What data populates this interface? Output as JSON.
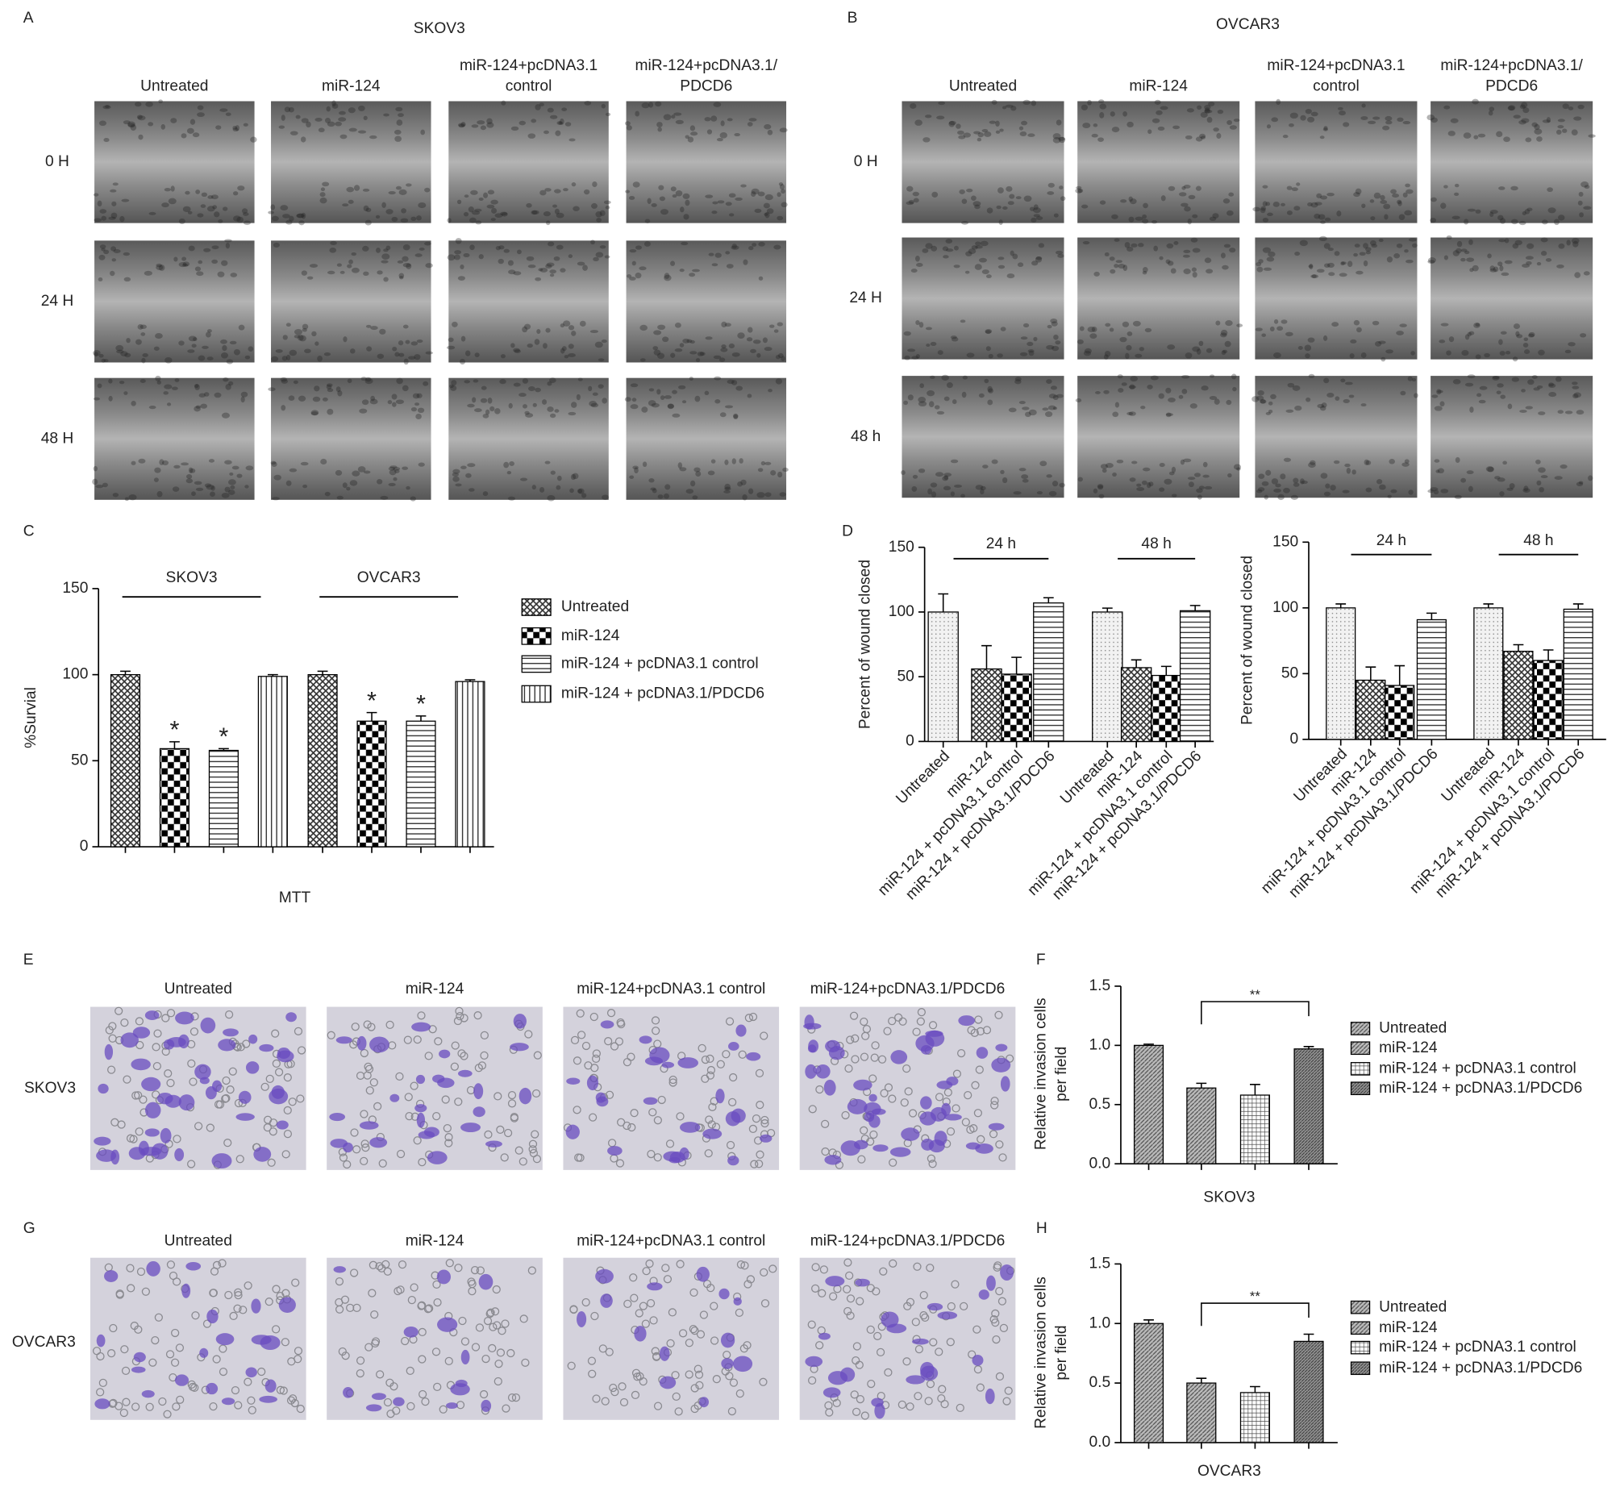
{
  "figure": {
    "panel_labels": [
      "A",
      "B",
      "C",
      "D",
      "E",
      "F",
      "G",
      "H"
    ],
    "wound_healing": [
      {
        "title": "SKOV3",
        "columns": [
          [
            "Untreated"
          ],
          [
            "miR-124"
          ],
          [
            "miR-124+pcDNA3.1",
            "control"
          ],
          [
            "miR-124+pcDNA3.1/",
            "PDCD6"
          ]
        ],
        "rows": [
          "0 H",
          "24 H",
          "48 H"
        ]
      },
      {
        "title": "OVCAR3",
        "columns": [
          [
            "Untreated"
          ],
          [
            "miR-124"
          ],
          [
            "miR-124+pcDNA3.1",
            "control"
          ],
          [
            "miR-124+pcDNA3.1/",
            "PDCD6"
          ]
        ],
        "rows": [
          "0 H",
          "24 H",
          "48 h"
        ]
      }
    ],
    "invasion": [
      {
        "row": "SKOV3",
        "columns": [
          "Untreated",
          "miR-124",
          "miR-124+pcDNA3.1 control",
          "miR-124+pcDNA3.1/PDCD6"
        ]
      },
      {
        "row": "OVCAR3",
        "columns": [
          "Untreated",
          "miR-124",
          "miR-124+pcDNA3.1 control",
          "miR-124+pcDNA3.1/PDCD6"
        ]
      }
    ]
  },
  "chart_data": [
    {
      "type": "bar",
      "categories": [
        "SKOV3",
        "OVCAR3"
      ],
      "series": [
        {
          "name": "Untreated",
          "pattern": "crosshatch",
          "values": [
            100,
            100
          ],
          "errors": [
            2,
            2
          ]
        },
        {
          "name": "miR-124",
          "pattern": "checker",
          "values": [
            57,
            73
          ],
          "errors": [
            4,
            5
          ]
        },
        {
          "name": "miR-124 + pcDNA3.1 control",
          "pattern": "hlines",
          "values": [
            56,
            73
          ],
          "errors": [
            1,
            3
          ]
        },
        {
          "name": "miR-124 + pcDNA3.1/PDCD6",
          "pattern": "vlines",
          "values": [
            99,
            96
          ],
          "errors": [
            1,
            1
          ]
        }
      ],
      "ylim": [
        0,
        150
      ],
      "yticks": [
        0,
        50,
        100,
        150
      ],
      "y_label": "%Survial",
      "x_label": "MTT",
      "annotations": [
        {
          "text": "*",
          "series": 1,
          "category": 0
        },
        {
          "text": "*",
          "series": 2,
          "category": 0
        },
        {
          "text": "*",
          "series": 1,
          "category": 1
        },
        {
          "text": "*",
          "series": 2,
          "category": 1
        }
      ]
    },
    {
      "type": "bar",
      "categories": [
        "Untreated",
        "miR-124",
        "miR-124 + pcDNA3.1 control",
        "miR-124 + pcDNA3.1/PDCD6"
      ],
      "patterns": [
        "dots",
        "crosshatch",
        "checker",
        "hlines"
      ],
      "series": [
        {
          "name": "24 h",
          "values": [
            100,
            56,
            52,
            107
          ],
          "errors": [
            14,
            18,
            13,
            4
          ]
        },
        {
          "name": "48 h",
          "values": [
            100,
            57,
            51,
            101
          ],
          "errors": [
            3,
            6,
            7,
            4
          ]
        }
      ],
      "ylim": [
        0,
        150
      ],
      "yticks": [
        0,
        50,
        100,
        150
      ],
      "y_label": "Percent of wound closed"
    },
    {
      "type": "bar",
      "categories": [
        "Untreated",
        "miR-124",
        "miR-124 + pcDNA3.1 control",
        "miR-124 + pcDNA3.1/PDCD6"
      ],
      "patterns": [
        "dots",
        "crosshatch",
        "checker",
        "hlines"
      ],
      "series": [
        {
          "name": "24 h",
          "values": [
            100,
            45,
            41,
            91
          ],
          "errors": [
            3,
            10,
            15,
            5
          ]
        },
        {
          "name": "48 h",
          "values": [
            100,
            67,
            60,
            99
          ],
          "errors": [
            3,
            5,
            8,
            4
          ]
        }
      ],
      "ylim": [
        0,
        150
      ],
      "yticks": [
        0,
        50,
        100,
        150
      ],
      "y_label": "Percent of wound closed"
    },
    {
      "type": "bar",
      "categories": [
        "Untreated",
        "miR-124",
        "miR-124 + pcDNA3.1 control",
        "miR-124 + pcDNA3.1/PDCD6"
      ],
      "patterns": [
        "diag",
        "diag",
        "grid",
        "diag2"
      ],
      "values": [
        1.0,
        0.64,
        0.58,
        0.97
      ],
      "errors": [
        0.01,
        0.04,
        0.09,
        0.02
      ],
      "ylim": [
        0,
        1.5
      ],
      "yticks": [
        {
          "value": 0,
          "label": "0.0"
        },
        {
          "value": 0.5,
          "label": "0.5"
        },
        {
          "value": 1,
          "label": "1.0"
        },
        {
          "value": 1.5,
          "label": "1.5"
        }
      ],
      "y_label": [
        "Relative invasion cells",
        "per field"
      ],
      "x_label": "SKOV3",
      "bracket": {
        "text": "**",
        "from": 1,
        "to": 3
      }
    },
    {
      "type": "bar",
      "categories": [
        "Untreated",
        "miR-124",
        "miR-124 + pcDNA3.1 control",
        "miR-124 + pcDNA3.1/PDCD6"
      ],
      "patterns": [
        "diag",
        "diag",
        "grid",
        "diag2"
      ],
      "values": [
        1.0,
        0.5,
        0.42,
        0.85
      ],
      "errors": [
        0.03,
        0.04,
        0.05,
        0.06
      ],
      "ylim": [
        0,
        1.5
      ],
      "yticks": [
        {
          "value": 0,
          "label": "0.0"
        },
        {
          "value": 0.5,
          "label": "0.5"
        },
        {
          "value": 1,
          "label": "1.0"
        },
        {
          "value": 1.5,
          "label": "1.5"
        }
      ],
      "y_label": [
        "Relative invasion cells",
        "per field"
      ],
      "x_label": "OVCAR3",
      "bracket": {
        "text": "**",
        "from": 1,
        "to": 3
      }
    }
  ]
}
